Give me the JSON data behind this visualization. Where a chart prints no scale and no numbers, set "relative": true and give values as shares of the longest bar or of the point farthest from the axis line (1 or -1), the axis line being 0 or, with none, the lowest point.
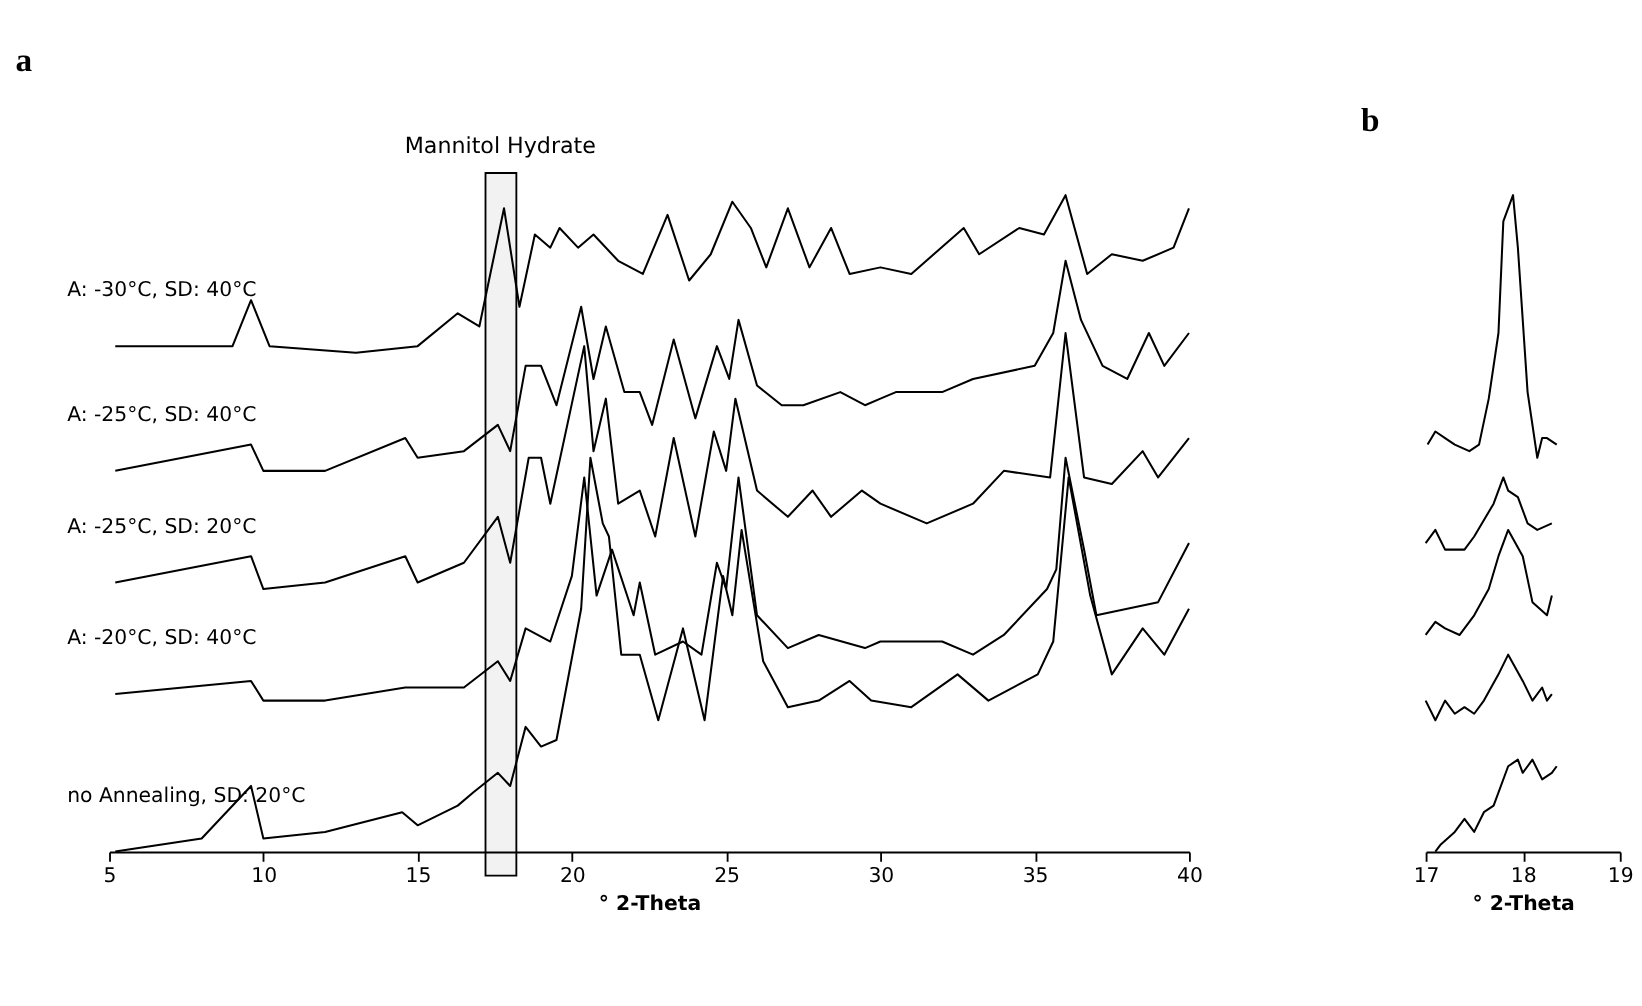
{
  "chart_data": [
    {
      "type": "line",
      "title": "a",
      "xlabel": "° 2-Theta",
      "relative": true,
      "xlim": [
        5,
        40
      ],
      "xticks": [
        5,
        10,
        15,
        20,
        25,
        30,
        35,
        40
      ],
      "grid": false,
      "bands": [
        {
          "axis": "x",
          "from": 17.2,
          "to": 18.2,
          "label": "Mannitol Hydrate"
        }
      ],
      "series": [
        {
          "name": "A: -30°C, SD: 40°C",
          "color": "#000000",
          "x": [
            5.2,
            7,
            9,
            9.6,
            10.2,
            13,
            15,
            16.3,
            17,
            17.8,
            18.3,
            18.8,
            19.3,
            19.6,
            20.2,
            20.7,
            21.5,
            22.3,
            23.1,
            23.8,
            24.5,
            25.2,
            25.8,
            26.3,
            27,
            27.7,
            28.4,
            29,
            30,
            31,
            32.7,
            33.2,
            34.5,
            35.3,
            36,
            36.7,
            37.5,
            38.5,
            39.5,
            40
          ],
          "values": [
            0.77,
            0.77,
            0.77,
            0.84,
            0.77,
            0.76,
            0.77,
            0.82,
            0.8,
            0.98,
            0.83,
            0.94,
            0.92,
            0.95,
            0.92,
            0.94,
            0.9,
            0.88,
            0.97,
            0.87,
            0.91,
            0.99,
            0.95,
            0.89,
            0.98,
            0.89,
            0.95,
            0.88,
            0.89,
            0.88,
            0.95,
            0.91,
            0.95,
            0.94,
            1.0,
            0.88,
            0.91,
            0.9,
            0.92,
            0.98
          ]
        },
        {
          "name": "A: -25°C, SD: 40°C",
          "color": "#000000",
          "x": [
            5.2,
            9.6,
            10,
            12,
            14.6,
            15,
            16.5,
            17.6,
            18,
            18.5,
            19,
            19.5,
            20.3,
            20.7,
            21.1,
            21.7,
            22.2,
            22.6,
            23.3,
            24,
            24.7,
            25.1,
            25.4,
            26,
            26.8,
            27.5,
            28.7,
            29.5,
            30,
            30.5,
            32,
            33,
            35,
            35.6,
            36,
            36.5,
            37.2,
            38,
            38.7,
            39.2,
            40
          ],
          "values": [
            0.58,
            0.62,
            0.58,
            0.58,
            0.63,
            0.6,
            0.61,
            0.65,
            0.61,
            0.74,
            0.74,
            0.68,
            0.83,
            0.72,
            0.8,
            0.7,
            0.7,
            0.65,
            0.78,
            0.66,
            0.77,
            0.72,
            0.81,
            0.71,
            0.68,
            0.68,
            0.7,
            0.68,
            0.69,
            0.7,
            0.7,
            0.72,
            0.74,
            0.79,
            0.9,
            0.81,
            0.74,
            0.72,
            0.79,
            0.74,
            0.79
          ]
        },
        {
          "name": "A: -25°C, SD: 20°C",
          "color": "#000000",
          "x": [
            5.2,
            9.6,
            10,
            12,
            14.6,
            15,
            16.5,
            17.6,
            18,
            18.6,
            19,
            19.3,
            20.4,
            20.7,
            21.1,
            21.5,
            22.2,
            22.7,
            23.3,
            24,
            24.6,
            25,
            25.3,
            26,
            27,
            27.8,
            28.4,
            29.4,
            30,
            31.5,
            33,
            34,
            35.5,
            36,
            36.6,
            37.5,
            38.5,
            39,
            40
          ],
          "values": [
            0.41,
            0.45,
            0.4,
            0.41,
            0.45,
            0.41,
            0.44,
            0.51,
            0.44,
            0.6,
            0.6,
            0.53,
            0.77,
            0.61,
            0.69,
            0.53,
            0.55,
            0.48,
            0.63,
            0.48,
            0.64,
            0.58,
            0.69,
            0.55,
            0.51,
            0.55,
            0.51,
            0.55,
            0.53,
            0.5,
            0.53,
            0.58,
            0.57,
            0.79,
            0.57,
            0.56,
            0.61,
            0.57,
            0.63
          ]
        },
        {
          "name": "A: -20°C, SD: 40°C",
          "color": "#000000",
          "x": [
            5.2,
            9.6,
            10,
            12,
            14.6,
            16.5,
            17.6,
            18,
            18.5,
            19.3,
            20,
            20.4,
            20.8,
            21.3,
            22,
            22.2,
            22.7,
            23.6,
            24.2,
            24.7,
            25,
            25.4,
            26,
            27,
            28,
            29.5,
            30,
            32,
            33,
            34,
            35.4,
            35.7,
            36,
            36.6,
            37,
            38,
            39,
            40
          ],
          "values": [
            0.24,
            0.26,
            0.23,
            0.23,
            0.25,
            0.25,
            0.29,
            0.26,
            0.34,
            0.32,
            0.42,
            0.57,
            0.39,
            0.46,
            0.36,
            0.41,
            0.3,
            0.32,
            0.3,
            0.44,
            0.4,
            0.57,
            0.36,
            0.31,
            0.33,
            0.31,
            0.32,
            0.32,
            0.3,
            0.33,
            0.4,
            0.43,
            0.6,
            0.46,
            0.36,
            0.37,
            0.38,
            0.47
          ]
        },
        {
          "name": "no Annealing, SD: 20°C",
          "color": "#000000",
          "x": [
            5.2,
            8,
            9.6,
            10,
            12,
            14.5,
            15,
            16.3,
            16.8,
            17.6,
            18,
            18.5,
            19,
            19.5,
            20.3,
            20.6,
            21,
            21.2,
            21.6,
            22.2,
            22.8,
            23.6,
            24.3,
            24.9,
            25.2,
            25.5,
            26.2,
            27,
            28,
            29,
            29.7,
            31,
            32.5,
            33.5,
            35.1,
            35.6,
            36.1,
            36.8,
            37.5,
            38.5,
            39.2,
            40
          ],
          "values": [
            0,
            0.02,
            0.1,
            0.02,
            0.03,
            0.06,
            0.04,
            0.07,
            0.09,
            0.12,
            0.1,
            0.19,
            0.16,
            0.17,
            0.37,
            0.6,
            0.5,
            0.48,
            0.3,
            0.3,
            0.2,
            0.34,
            0.2,
            0.42,
            0.36,
            0.49,
            0.29,
            0.22,
            0.23,
            0.26,
            0.23,
            0.22,
            0.27,
            0.23,
            0.27,
            0.32,
            0.57,
            0.39,
            0.27,
            0.34,
            0.3,
            0.37
          ]
        }
      ]
    },
    {
      "type": "line",
      "title": "b",
      "xlabel": "° 2-Theta",
      "relative": true,
      "xlim": [
        17,
        19
      ],
      "xticks": [
        17,
        18,
        19
      ],
      "grid": false,
      "series": [
        {
          "color": "#000000",
          "x": [
            17.02,
            17.1,
            17.2,
            17.3,
            17.45,
            17.55,
            17.65,
            17.75,
            17.8,
            17.9,
            17.95,
            18.05,
            18.15,
            18.2,
            18.25,
            18.35
          ],
          "values": [
            0.62,
            0.64,
            0.63,
            0.62,
            0.61,
            0.62,
            0.69,
            0.79,
            0.96,
            1.0,
            0.92,
            0.7,
            0.6,
            0.63,
            0.63,
            0.62
          ]
        },
        {
          "color": "#000000",
          "x": [
            17.0,
            17.1,
            17.2,
            17.4,
            17.5,
            17.7,
            17.8,
            17.85,
            17.95,
            18.05,
            18.15,
            18.3
          ],
          "values": [
            0.47,
            0.49,
            0.46,
            0.46,
            0.48,
            0.53,
            0.57,
            0.55,
            0.54,
            0.5,
            0.49,
            0.5
          ]
        },
        {
          "color": "#000000",
          "x": [
            17.0,
            17.1,
            17.2,
            17.35,
            17.5,
            17.65,
            17.75,
            17.85,
            18.0,
            18.1,
            18.25,
            18.3
          ],
          "values": [
            0.33,
            0.35,
            0.34,
            0.33,
            0.36,
            0.4,
            0.45,
            0.49,
            0.45,
            0.38,
            0.36,
            0.39
          ]
        },
        {
          "color": "#000000",
          "x": [
            17.0,
            17.1,
            17.2,
            17.3,
            17.4,
            17.5,
            17.6,
            17.75,
            17.85,
            18.0,
            18.1,
            18.2,
            18.25,
            18.3
          ],
          "values": [
            0.23,
            0.2,
            0.23,
            0.21,
            0.22,
            0.21,
            0.23,
            0.27,
            0.3,
            0.26,
            0.23,
            0.25,
            0.23,
            0.24
          ]
        },
        {
          "color": "#000000",
          "x": [
            17.1,
            17.15,
            17.3,
            17.4,
            17.5,
            17.6,
            17.7,
            17.85,
            17.95,
            18.0,
            18.1,
            18.2,
            18.3,
            18.35
          ],
          "values": [
            0,
            0.01,
            0.03,
            0.05,
            0.03,
            0.06,
            0.07,
            0.13,
            0.14,
            0.12,
            0.14,
            0.11,
            0.12,
            0.13
          ]
        }
      ]
    }
  ]
}
